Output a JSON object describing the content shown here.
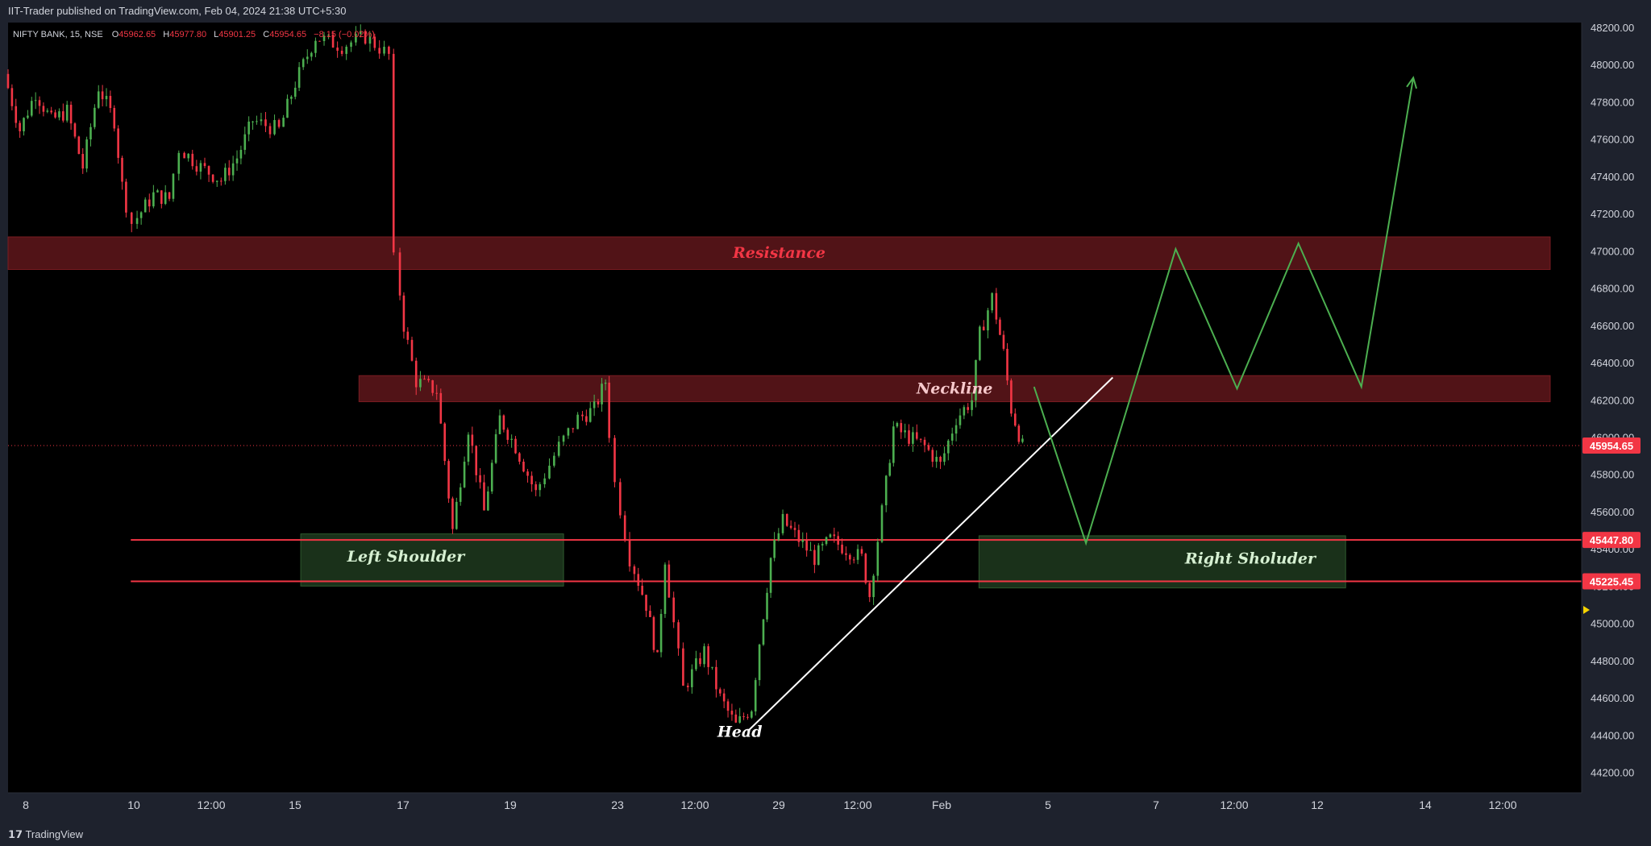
{
  "header": {
    "published": "IIT-Trader published on TradingView.com, Feb 04, 2024 21:38 UTC+5:30"
  },
  "legend": {
    "symbol": "NIFTY BANK, 15, NSE",
    "o_label": "O",
    "o_value": "45962.65",
    "h_label": "H",
    "h_value": "45977.80",
    "l_label": "L",
    "l_value": "45901.25",
    "c_label": "C",
    "c_value": "45954.65",
    "change": "−8.15 (−0.02%)"
  },
  "footer": {
    "brand": "TradingView"
  },
  "colors": {
    "background": "#000000",
    "up": "#4caf50",
    "down": "#f23645",
    "zone_red": "#5a151a",
    "zone_green": "#1f3a1f",
    "projection": "#4caf50",
    "trendline": "#ffffff",
    "price_tag": "#f23645"
  },
  "chart_data": {
    "type": "candlestick",
    "symbol": "NIFTY BANK",
    "interval": "15",
    "exchange": "NSE",
    "y_axis": {
      "min": 44100,
      "max": 48250,
      "ticks": [
        "48200.00",
        "48000.00",
        "47800.00",
        "47600.00",
        "47400.00",
        "47200.00",
        "47000.00",
        "46800.00",
        "46600.00",
        "46400.00",
        "46200.00",
        "46000.00",
        "45800.00",
        "45600.00",
        "45400.00",
        "45200.00",
        "45000.00",
        "44800.00",
        "44600.00",
        "44400.00",
        "44200.00"
      ]
    },
    "x_axis": {
      "ticks": [
        "8",
        "10",
        "12:00",
        "15",
        "17",
        "19",
        "23",
        "12:00",
        "29",
        "12:00",
        "Feb",
        "5",
        "7",
        "12:00",
        "12",
        "14",
        "12:00"
      ]
    },
    "price_tags": [
      {
        "value": "45954.65",
        "price": 45954.65
      },
      {
        "value": "45447.80",
        "price": 45447.8
      },
      {
        "value": "45225.45",
        "price": 45225.45
      }
    ],
    "zones": [
      {
        "label": "Resistance",
        "kind": "resistance",
        "price_top": 47075,
        "price_bottom": 46900,
        "x_start": 0,
        "x_end": 98
      },
      {
        "label": "Neckline",
        "kind": "neckline",
        "price_top": 46330,
        "price_bottom": 46190,
        "x_start": 22.3,
        "x_end": 98
      },
      {
        "label": "Left Shoulder",
        "kind": "shoulder",
        "price_top": 45480,
        "price_bottom": 45200,
        "x_start": 18.6,
        "x_end": 35.3
      },
      {
        "label": "Right Sholuder",
        "kind": "shoulder",
        "price_top": 45470,
        "price_bottom": 45190,
        "x_start": 61.7,
        "x_end": 85.0
      }
    ],
    "annotations": [
      {
        "label": "Head",
        "price": 44390,
        "x": 46.5
      }
    ],
    "horizontal_lines": [
      {
        "price": 45447.8,
        "x_start": 7.8
      },
      {
        "price": 45225.45,
        "x_start": 7.8
      }
    ],
    "trendline": [
      {
        "x": 47.0,
        "price": 44420
      },
      {
        "x": 70.2,
        "price": 46320
      }
    ],
    "projection": [
      {
        "x": 65.2,
        "price": 46270
      },
      {
        "x": 68.5,
        "price": 45430
      },
      {
        "x": 74.2,
        "price": 47010
      },
      {
        "x": 78.1,
        "price": 46260
      },
      {
        "x": 82.0,
        "price": 47040
      },
      {
        "x": 86.0,
        "price": 46270
      },
      {
        "x": 89.3,
        "price": 47930
      }
    ],
    "candle_path": [
      [
        0,
        47950
      ],
      [
        1,
        47650
      ],
      [
        2,
        47850
      ],
      [
        3,
        47700
      ],
      [
        4,
        47750
      ],
      [
        5,
        47450
      ],
      [
        6,
        47880
      ],
      [
        7,
        47700
      ],
      [
        7.5,
        47350
      ],
      [
        8.2,
        47150
      ],
      [
        9.5,
        47300
      ],
      [
        10.5,
        47280
      ],
      [
        11.2,
        47550
      ],
      [
        12.5,
        47450
      ],
      [
        13.8,
        47380
      ],
      [
        14.8,
        47500
      ],
      [
        15.8,
        47700
      ],
      [
        17.5,
        47650
      ],
      [
        18.5,
        47900
      ],
      [
        19.8,
        48150
      ],
      [
        21.5,
        48100
      ],
      [
        23,
        48150
      ],
      [
        24.5,
        48050
      ],
      [
        24.9,
        46950
      ],
      [
        25.4,
        46600
      ],
      [
        26.2,
        46300
      ],
      [
        27.5,
        46250
      ],
      [
        28.5,
        45500
      ],
      [
        29.5,
        46050
      ],
      [
        30.5,
        45600
      ],
      [
        31.5,
        46100
      ],
      [
        32.5,
        45950
      ],
      [
        33.8,
        45700
      ],
      [
        35.3,
        45950
      ],
      [
        36.5,
        46100
      ],
      [
        37.5,
        46150
      ],
      [
        38.2,
        46300
      ],
      [
        38.9,
        45750
      ],
      [
        39.8,
        45350
      ],
      [
        40.8,
        45100
      ],
      [
        41.5,
        44800
      ],
      [
        42.0,
        45350
      ],
      [
        43.2,
        44650
      ],
      [
        44.5,
        44850
      ],
      [
        45.5,
        44600
      ],
      [
        46.5,
        44450
      ],
      [
        47.5,
        44550
      ],
      [
        48.0,
        44900
      ],
      [
        48.7,
        45350
      ],
      [
        49.5,
        45550
      ],
      [
        50.5,
        45450
      ],
      [
        51.5,
        45350
      ],
      [
        52.5,
        45450
      ],
      [
        53.5,
        45400
      ],
      [
        54.5,
        45350
      ],
      [
        55.0,
        45150
      ],
      [
        55.8,
        45600
      ],
      [
        56.5,
        46050
      ],
      [
        57.5,
        46000
      ],
      [
        58.5,
        45950
      ],
      [
        59.5,
        45850
      ],
      [
        60.5,
        46100
      ],
      [
        61.5,
        46200
      ],
      [
        62.0,
        46550
      ],
      [
        62.8,
        46750
      ],
      [
        63.5,
        46450
      ],
      [
        64.0,
        46150
      ],
      [
        64.7,
        45950
      ]
    ]
  }
}
